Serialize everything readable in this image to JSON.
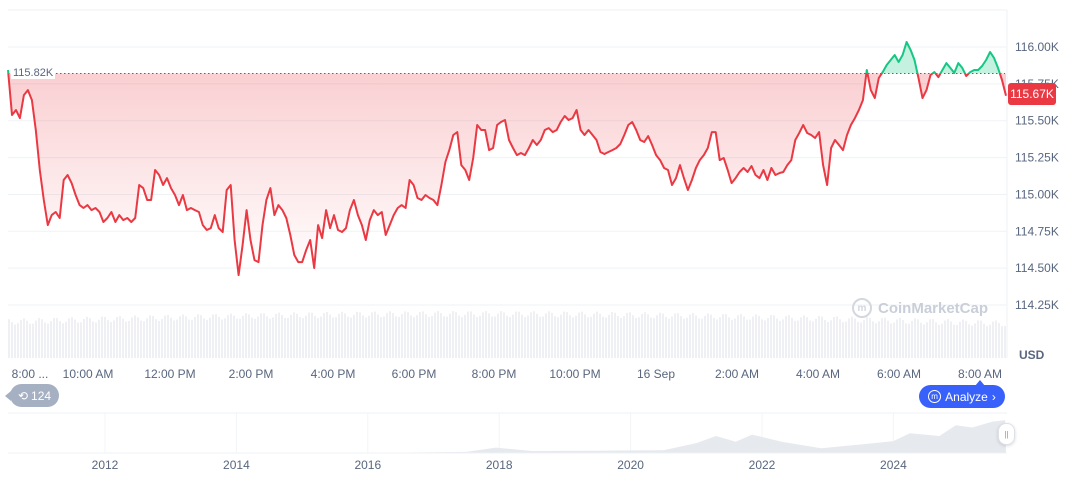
{
  "chart_data": {
    "type": "line",
    "currency_label": "USD",
    "baseline_value": 115820,
    "baseline_label": "115.82K",
    "current_value": 115670,
    "current_label": "115.67K",
    "ylim": [
      114150,
      116180
    ],
    "yticks": [
      {
        "value": 116000,
        "label": "116.00K"
      },
      {
        "value": 115750,
        "label": "115.75K"
      },
      {
        "value": 115500,
        "label": "115.50K"
      },
      {
        "value": 115250,
        "label": "115.25K"
      },
      {
        "value": 115000,
        "label": "115.00K"
      },
      {
        "value": 114750,
        "label": "114.75K"
      },
      {
        "value": 114500,
        "label": "114.50K"
      },
      {
        "value": 114250,
        "label": "114.25K"
      }
    ],
    "xticks": [
      "8:00 ...",
      "10:00 AM",
      "12:00 PM",
      "2:00 PM",
      "4:00 PM",
      "6:00 PM",
      "8:00 PM",
      "10:00 PM",
      "16 Sep",
      "2:00 AM",
      "4:00 AM",
      "6:00 AM",
      "8:00 AM"
    ],
    "colors": {
      "up": "#16c784",
      "down": "#ea3943",
      "accent": "#3861fb"
    },
    "grid": true,
    "values": [
      115844,
      115539,
      115573,
      115518,
      115674,
      115708,
      115640,
      115437,
      115166,
      114962,
      114792,
      114860,
      114881,
      114840,
      115098,
      115132,
      115077,
      114996,
      114928,
      114908,
      114928,
      114894,
      114908,
      114881,
      114813,
      114840,
      114881,
      114813,
      114860,
      114826,
      114840,
      114813,
      114840,
      115064,
      115043,
      114962,
      114962,
      115166,
      115132,
      115064,
      115111,
      115043,
      114996,
      114928,
      114996,
      114894,
      114908,
      114894,
      114881,
      114792,
      114759,
      114772,
      114860,
      114772,
      114745,
      115030,
      115064,
      114691,
      114453,
      114657,
      114894,
      114691,
      114555,
      114541,
      114792,
      114962,
      115043,
      114860,
      114928,
      114894,
      114840,
      114725,
      114589,
      114541,
      114541,
      114623,
      114691,
      114501,
      114792,
      114704,
      114894,
      114772,
      114860,
      114759,
      114745,
      114772,
      114894,
      114962,
      114860,
      114792,
      114691,
      114826,
      114894,
      114860,
      114881,
      114725,
      114792,
      114860,
      114908,
      114928,
      114908,
      115098,
      115064,
      114976,
      114962,
      114996,
      114976,
      114962,
      114928,
      115064,
      115220,
      115301,
      115403,
      115423,
      115199,
      115166,
      115098,
      115247,
      115471,
      115437,
      115437,
      115301,
      115315,
      115471,
      115491,
      115505,
      115369,
      115315,
      115267,
      115281,
      115267,
      115315,
      115369,
      115335,
      115369,
      115437,
      115450,
      115423,
      115437,
      115491,
      115532,
      115505,
      115518,
      115573,
      115437,
      115403,
      115437,
      115403,
      115369,
      115288,
      115274,
      115288,
      115301,
      115315,
      115342,
      115403,
      115471,
      115491,
      115437,
      115369,
      115356,
      115396,
      115335,
      115267,
      115233,
      115179,
      115166,
      115064,
      115111,
      115199,
      115111,
      115030,
      115098,
      115179,
      115233,
      115267,
      115315,
      115423,
      115423,
      115233,
      115247,
      115166,
      115077,
      115111,
      115152,
      115179,
      115152,
      115193,
      115132,
      115111,
      115166,
      115098,
      115179,
      115132,
      115145,
      115152,
      115199,
      115233,
      115369,
      115417,
      115471,
      115417,
      115403,
      115383,
      115423,
      115199,
      115064,
      115315,
      115369,
      115335,
      115301,
      115403,
      115471,
      115518,
      115573,
      115640,
      115844,
      115708,
      115654,
      115790,
      115830,
      115878,
      115912,
      115946,
      115898,
      115946,
      116034,
      115980,
      115912,
      115790,
      115654,
      115708,
      115810,
      115830,
      115796,
      115844,
      115891,
      115858,
      115824,
      115891,
      115858,
      115803,
      115830,
      115844,
      115844,
      115871,
      115912,
      115966,
      115925,
      115858,
      115776,
      115670
    ],
    "navigator": {
      "xticks": [
        "2012",
        "2014",
        "2016",
        "2018",
        "2020",
        "2022",
        "2024"
      ],
      "years": [
        2010.6,
        2013,
        2016,
        2017.5,
        2017.95,
        2018.5,
        2019.5,
        2020.5,
        2021.0,
        2021.3,
        2021.6,
        2021.85,
        2022.3,
        2022.9,
        2023.5,
        2024.0,
        2024.25,
        2024.7,
        2024.95,
        2025.2,
        2025.5,
        2025.7
      ],
      "values": [
        0,
        0.1,
        0.4,
        4,
        19,
        7,
        8,
        10,
        35,
        60,
        40,
        65,
        40,
        17,
        30,
        42,
        70,
        60,
        98,
        90,
        110,
        116
      ]
    }
  },
  "history_badge": {
    "icon": "history-icon",
    "count": "124"
  },
  "analyze_button": {
    "icon": "cmc-logo-icon",
    "label": "Analyze",
    "chevron": "›"
  },
  "watermark": "CoinMarketCap"
}
